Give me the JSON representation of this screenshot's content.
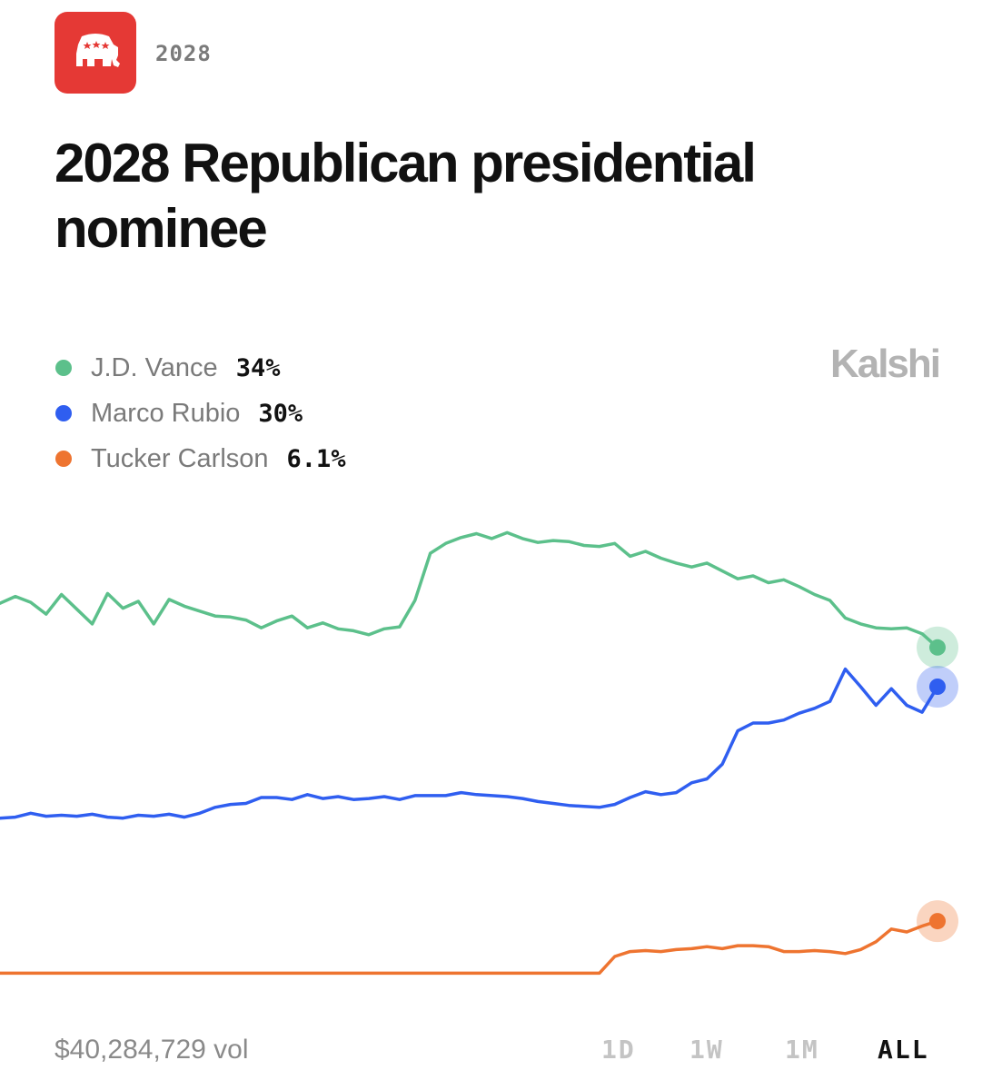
{
  "header": {
    "logo_icon": "republican-elephant-icon",
    "logo_color": "#e53935",
    "year_tag": "2028"
  },
  "title": "2028 Republican presidential nominee",
  "brand": "Kalshi",
  "legend": [
    {
      "name": "J.D. Vance",
      "value": "34%",
      "color": "#5cc08b"
    },
    {
      "name": "Marco Rubio",
      "value": "30%",
      "color": "#2f5ef0"
    },
    {
      "name": "Tucker Carlson",
      "value": "6.1%",
      "color": "#ee7430"
    }
  ],
  "footer": {
    "volume": "$40,284,729 vol",
    "ranges": [
      "1D",
      "1W",
      "1M",
      "ALL"
    ],
    "active_range": "ALL"
  },
  "chart_data": {
    "type": "line",
    "x_axis": "time",
    "grid": false,
    "legend_position": "top-left",
    "ylim": [
      0,
      50
    ],
    "series": [
      {
        "name": "J.D. Vance",
        "color": "#5cc08b",
        "final_value": 34,
        "values": [
          38.5,
          39.2,
          38.6,
          37.4,
          39.4,
          37.9,
          36.4,
          39.5,
          38.0,
          38.7,
          36.4,
          38.9,
          38.2,
          37.7,
          37.2,
          37.1,
          36.8,
          36.0,
          36.7,
          37.2,
          36.0,
          36.5,
          35.9,
          35.7,
          35.3,
          35.9,
          36.1,
          38.8,
          43.6,
          44.6,
          45.2,
          45.6,
          45.1,
          45.7,
          45.1,
          44.7,
          44.9,
          44.8,
          44.4,
          44.3,
          44.6,
          43.3,
          43.8,
          43.1,
          42.6,
          42.2,
          42.6,
          41.8,
          41.0,
          41.3,
          40.6,
          40.9,
          40.2,
          39.4,
          38.8,
          37.0,
          36.4,
          36.0,
          35.9,
          36.0,
          35.4,
          34.0
        ]
      },
      {
        "name": "Marco Rubio",
        "color": "#2f5ef0",
        "final_value": 30,
        "values": [
          16.6,
          16.7,
          17.1,
          16.8,
          16.9,
          16.8,
          17.0,
          16.7,
          16.6,
          16.9,
          16.8,
          17.0,
          16.7,
          17.1,
          17.7,
          18.0,
          18.1,
          18.7,
          18.7,
          18.5,
          19.0,
          18.6,
          18.8,
          18.5,
          18.6,
          18.8,
          18.5,
          18.9,
          18.9,
          18.9,
          19.2,
          19.0,
          18.9,
          18.8,
          18.6,
          18.3,
          18.1,
          17.9,
          17.8,
          17.7,
          18.0,
          18.7,
          19.3,
          19.0,
          19.2,
          20.2,
          20.6,
          22.1,
          25.5,
          26.3,
          26.3,
          26.6,
          27.3,
          27.8,
          28.5,
          31.8,
          30.0,
          28.1,
          29.8,
          28.1,
          27.4,
          30.0
        ]
      },
      {
        "name": "Tucker Carlson",
        "color": "#ee7430",
        "final_value": 6.1,
        "values": [
          0.8,
          0.8,
          0.8,
          0.8,
          0.8,
          0.8,
          0.8,
          0.8,
          0.8,
          0.8,
          0.8,
          0.8,
          0.8,
          0.8,
          0.8,
          0.8,
          0.8,
          0.8,
          0.8,
          0.8,
          0.8,
          0.8,
          0.8,
          0.8,
          0.8,
          0.8,
          0.8,
          0.8,
          0.8,
          0.8,
          0.8,
          0.8,
          0.8,
          0.8,
          0.8,
          0.8,
          0.8,
          0.8,
          0.8,
          0.8,
          2.5,
          3.0,
          3.1,
          3.0,
          3.2,
          3.3,
          3.5,
          3.3,
          3.6,
          3.6,
          3.5,
          3.0,
          3.0,
          3.1,
          3.0,
          2.8,
          3.2,
          4.0,
          5.3,
          5.0,
          5.6,
          6.1
        ]
      }
    ]
  }
}
